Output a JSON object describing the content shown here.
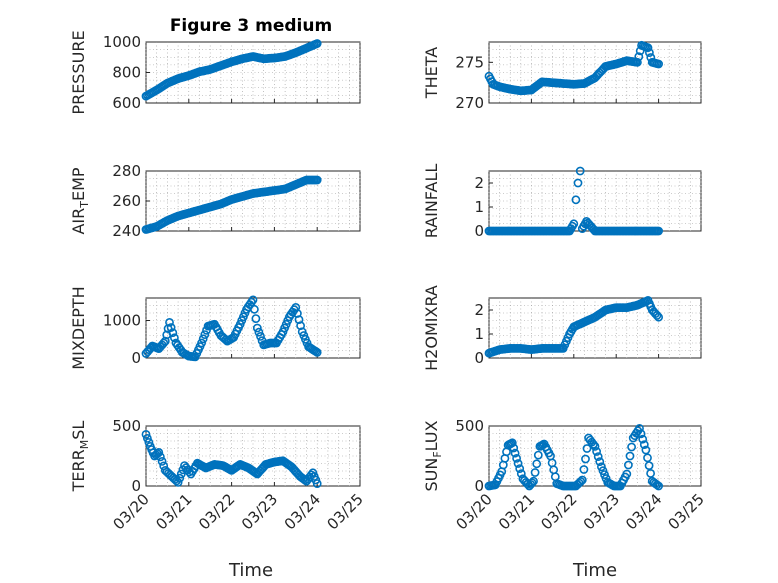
{
  "figure": {
    "title": "Figure 3 medium",
    "xlabel": "Time",
    "marker_color": "#0072BD",
    "xticks": [
      "03/20",
      "03/21",
      "03/22",
      "03/23",
      "03/24",
      "03/25"
    ]
  },
  "chart_data": [
    {
      "type": "scatter",
      "name": "PRESSURE",
      "ylabel": "PRESSURE",
      "ylim": [
        600,
        1000
      ],
      "yticks": [
        600,
        800,
        1000
      ],
      "grid": true,
      "x": [
        0,
        0.25,
        0.5,
        0.75,
        1.0,
        1.25,
        1.5,
        1.75,
        2.0,
        2.25,
        2.5,
        2.75,
        3.0,
        3.25,
        3.5,
        3.75,
        4.0
      ],
      "y": [
        645,
        685,
        730,
        760,
        780,
        805,
        820,
        845,
        870,
        890,
        905,
        890,
        895,
        905,
        930,
        960,
        990
      ]
    },
    {
      "type": "scatter",
      "name": "THETA",
      "ylabel": "THETA",
      "ylim": [
        270,
        277.5
      ],
      "yticks": [
        270,
        275
      ],
      "grid": true,
      "x": [
        0,
        0.1,
        0.25,
        0.5,
        0.75,
        1.0,
        1.25,
        1.5,
        1.75,
        2.0,
        2.25,
        2.5,
        2.75,
        3.0,
        3.25,
        3.5,
        3.6,
        3.75,
        3.85,
        4.0
      ],
      "y": [
        273.3,
        272.3,
        272.0,
        271.7,
        271.5,
        271.6,
        272.6,
        272.5,
        272.4,
        272.3,
        272.4,
        273.1,
        274.5,
        274.8,
        275.2,
        275.0,
        277.1,
        276.8,
        275.0,
        274.8
      ]
    },
    {
      "type": "scatter",
      "name": "AIR_TEMP",
      "ylabel": "AIR_TEMP",
      "ylim": [
        240,
        280
      ],
      "yticks": [
        240,
        260,
        280
      ],
      "grid": true,
      "x": [
        0,
        0.25,
        0.5,
        0.75,
        1.0,
        1.25,
        1.5,
        1.75,
        2.0,
        2.25,
        2.5,
        2.75,
        3.0,
        3.25,
        3.5,
        3.75,
        4.0
      ],
      "y": [
        241,
        243,
        247,
        250,
        252,
        254,
        256,
        258,
        261,
        263,
        265,
        266,
        267,
        268,
        271,
        274,
        274
      ]
    },
    {
      "type": "scatter",
      "name": "RAINFALL",
      "ylabel": "RAINFALL",
      "ylim": [
        0,
        2.5
      ],
      "yticks": [
        0,
        1,
        2
      ],
      "grid": true,
      "x": [
        0,
        0.5,
        1.0,
        1.5,
        1.9,
        2.0,
        2.05,
        2.1,
        2.15,
        2.2,
        2.3,
        2.5,
        3.0,
        3.5,
        4.0
      ],
      "y": [
        0,
        0,
        0,
        0,
        0,
        0.3,
        1.3,
        2.0,
        2.5,
        0.1,
        0.4,
        0,
        0,
        0,
        0
      ]
    },
    {
      "type": "scatter",
      "name": "MIXDEPTH",
      "ylabel": "MIXDEPTH",
      "ylim": [
        0,
        1600
      ],
      "yticks": [
        0,
        1000
      ],
      "grid": true,
      "x": [
        0,
        0.15,
        0.3,
        0.45,
        0.55,
        0.7,
        0.85,
        1.0,
        1.15,
        1.3,
        1.45,
        1.6,
        1.75,
        1.9,
        2.05,
        2.2,
        2.35,
        2.5,
        2.6,
        2.75,
        2.9,
        3.05,
        3.2,
        3.35,
        3.5,
        3.65,
        3.8,
        4.0
      ],
      "y": [
        120,
        320,
        250,
        450,
        950,
        400,
        150,
        50,
        30,
        400,
        850,
        900,
        600,
        450,
        550,
        900,
        1300,
        1550,
        800,
        350,
        400,
        400,
        700,
        1100,
        1350,
        700,
        300,
        150
      ]
    },
    {
      "type": "scatter",
      "name": "H2OMIXRA",
      "ylabel": "H2OMIXRA",
      "ylim": [
        0,
        2.5
      ],
      "yticks": [
        0,
        1,
        2
      ],
      "grid": true,
      "x": [
        0,
        0.25,
        0.5,
        0.75,
        1.0,
        1.25,
        1.5,
        1.75,
        1.9,
        2.0,
        2.25,
        2.5,
        2.75,
        3.0,
        3.25,
        3.5,
        3.75,
        3.85,
        4.0
      ],
      "y": [
        0.2,
        0.35,
        0.4,
        0.4,
        0.35,
        0.4,
        0.4,
        0.4,
        1.0,
        1.3,
        1.5,
        1.7,
        2.0,
        2.1,
        2.1,
        2.2,
        2.4,
        2.0,
        1.7
      ]
    },
    {
      "type": "scatter",
      "name": "TERR_MSL",
      "ylabel": "TERR_MSL",
      "ylim": [
        0,
        500
      ],
      "yticks": [
        0,
        500
      ],
      "grid": true,
      "x": [
        0,
        0.1,
        0.2,
        0.3,
        0.45,
        0.6,
        0.75,
        0.9,
        1.05,
        1.2,
        1.4,
        1.6,
        1.8,
        2.0,
        2.2,
        2.4,
        2.6,
        2.8,
        3.0,
        3.2,
        3.4,
        3.6,
        3.75,
        3.9,
        4.0
      ],
      "y": [
        430,
        330,
        250,
        280,
        130,
        80,
        30,
        170,
        100,
        190,
        150,
        180,
        170,
        130,
        180,
        150,
        100,
        180,
        200,
        210,
        160,
        80,
        40,
        110,
        20
      ]
    },
    {
      "type": "scatter",
      "name": "SUN_FLUX",
      "ylabel": "SUN_FLUX",
      "ylim": [
        0,
        500
      ],
      "yticks": [
        0,
        500
      ],
      "grid": true,
      "x": [
        0,
        0.15,
        0.3,
        0.45,
        0.55,
        0.65,
        0.8,
        0.95,
        1.05,
        1.2,
        1.3,
        1.45,
        1.6,
        1.75,
        1.9,
        2.05,
        2.2,
        2.35,
        2.5,
        2.65,
        2.8,
        2.95,
        3.1,
        3.25,
        3.4,
        3.55,
        3.7,
        3.85,
        4.0
      ],
      "y": [
        0,
        10,
        120,
        340,
        360,
        230,
        60,
        0,
        40,
        330,
        350,
        250,
        20,
        0,
        0,
        0,
        50,
        400,
        330,
        160,
        30,
        0,
        0,
        100,
        400,
        480,
        300,
        40,
        0
      ]
    }
  ]
}
